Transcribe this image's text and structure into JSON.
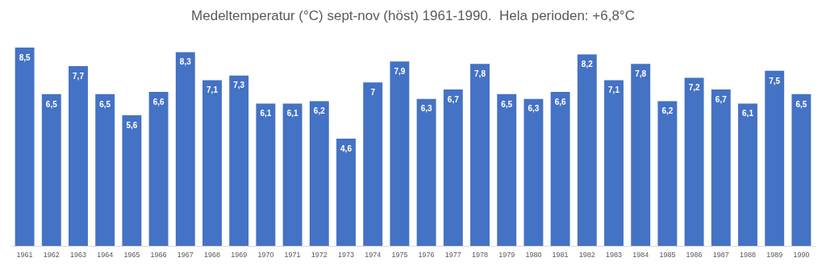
{
  "chart_data": {
    "type": "bar",
    "title": "Medeltemperatur (°C) sept-nov (höst) 1961-1990.  Hela perioden: +6,8°C",
    "categories": [
      "1961",
      "1962",
      "1963",
      "1964",
      "1965",
      "1966",
      "1967",
      "1968",
      "1969",
      "1970",
      "1971",
      "1972",
      "1973",
      "1974",
      "1975",
      "1976",
      "1977",
      "1978",
      "1979",
      "1980",
      "1981",
      "1982",
      "1983",
      "1984",
      "1985",
      "1986",
      "1987",
      "1988",
      "1989",
      "1990"
    ],
    "values": [
      8.5,
      6.5,
      7.7,
      6.5,
      5.6,
      6.6,
      8.3,
      7.1,
      7.3,
      6.1,
      6.1,
      6.2,
      4.6,
      7,
      7.9,
      6.3,
      6.7,
      7.8,
      6.5,
      6.3,
      6.6,
      8.2,
      7.1,
      7.8,
      6.2,
      7.2,
      6.7,
      6.1,
      7.5,
      6.5
    ],
    "value_labels": [
      "8,5",
      "6,5",
      "7,7",
      "6,5",
      "5,6",
      "6,6",
      "8,3",
      "7,1",
      "7,3",
      "6,1",
      "6,1",
      "6,2",
      "4,6",
      "7",
      "7,9",
      "6,3",
      "6,7",
      "7,8",
      "6,5",
      "6,3",
      "6,6",
      "8,2",
      "7,1",
      "7,8",
      "6,2",
      "7,2",
      "6,7",
      "6,1",
      "7,5",
      "6,5"
    ],
    "color": "#4472c4",
    "grid": false,
    "legend": false
  }
}
